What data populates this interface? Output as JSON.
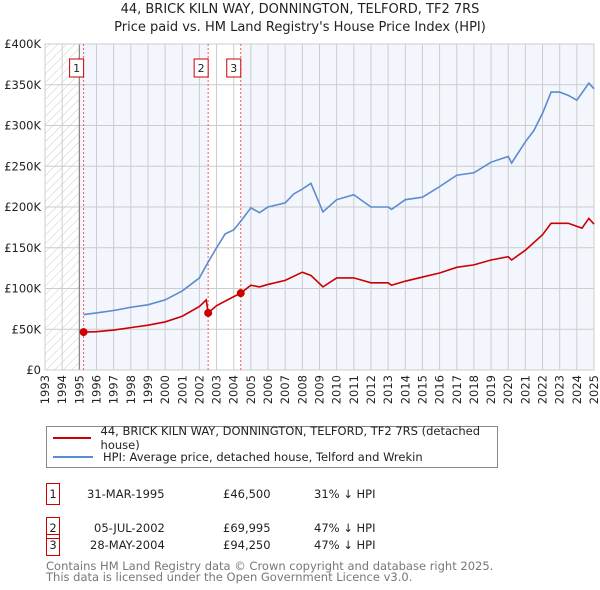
{
  "chart_data": {
    "type": "line",
    "title": "44, BRICK KILN WAY, DONNINGTON, TELFORD, TF2 7RS",
    "subtitle": "Price paid vs. HM Land Registry's House Price Index (HPI)",
    "xlim": [
      1993,
      2025
    ],
    "ylim": [
      0,
      400000
    ],
    "x_ticks": [
      "1993",
      "1994",
      "1995",
      "1996",
      "1997",
      "1998",
      "1999",
      "2000",
      "2001",
      "2002",
      "2003",
      "2004",
      "2005",
      "2006",
      "2007",
      "2008",
      "2009",
      "2010",
      "2011",
      "2012",
      "2013",
      "2014",
      "2015",
      "2016",
      "2017",
      "2018",
      "2019",
      "2020",
      "2021",
      "2022",
      "2023",
      "2024",
      "2025"
    ],
    "y_ticks": [
      {
        "v": 0,
        "label": "£0"
      },
      {
        "v": 50000,
        "label": "£50K"
      },
      {
        "v": 100000,
        "label": "£100K"
      },
      {
        "v": 150000,
        "label": "£150K"
      },
      {
        "v": 200000,
        "label": "£200K"
      },
      {
        "v": 250000,
        "label": "£250K"
      },
      {
        "v": 300000,
        "label": "£300K"
      },
      {
        "v": 350000,
        "label": "£350K"
      },
      {
        "v": 400000,
        "label": "£400K"
      }
    ],
    "grid": true,
    "legend_placement": "below",
    "series": [
      {
        "name": "44, BRICK KILN WAY, DONNINGTON, TELFORD, TF2 7RS (detached house)",
        "color": "#cc0000",
        "x": [
          1995.25,
          1996,
          1997,
          1998,
          1999,
          2000,
          2001,
          2002,
          2002.4,
          2002.51,
          2003,
          2004,
          2004.41,
          2005,
          2005.5,
          2006,
          2007,
          2008,
          2008.5,
          2009.2,
          2010,
          2011,
          2012,
          2013,
          2013.2,
          2014,
          2015,
          2016,
          2017,
          2018,
          2019,
          2020,
          2020.2,
          2021,
          2022,
          2022.5,
          2023.5,
          2024.3,
          2024.7,
          2025
        ],
        "y": [
          46500,
          47000,
          49000,
          52000,
          55000,
          59000,
          66000,
          78000,
          86000,
          69995,
          79000,
          90000,
          94250,
          104000,
          102000,
          105000,
          110000,
          120000,
          116000,
          102000,
          113000,
          113000,
          107000,
          107000,
          104000,
          109000,
          114000,
          119000,
          126000,
          129000,
          135000,
          139000,
          135000,
          147000,
          166000,
          180000,
          180000,
          174000,
          186000,
          179000
        ]
      },
      {
        "name": "HPI: Average price, detached house, Telford and Wrekin",
        "color": "#5b8bd0",
        "x": [
          1995.25,
          1996,
          1997,
          1998,
          1999,
          2000,
          2001,
          2002,
          2002.5,
          2003,
          2003.5,
          2004,
          2004.5,
          2005,
          2005.5,
          2006,
          2007,
          2007.5,
          2008,
          2008.5,
          2009.2,
          2010,
          2011,
          2012,
          2013,
          2013.2,
          2014,
          2015,
          2016,
          2017,
          2018,
          2019,
          2020,
          2020.2,
          2021,
          2021.5,
          2022,
          2022.5,
          2023,
          2023.5,
          2024,
          2024.7,
          2025
        ],
        "y": [
          68000,
          70000,
          73000,
          77000,
          80000,
          86000,
          97000,
          113000,
          132000,
          150000,
          167000,
          172000,
          185000,
          199000,
          193000,
          200000,
          205000,
          216000,
          222000,
          229000,
          194000,
          209000,
          215000,
          200000,
          200000,
          197000,
          209000,
          212000,
          225000,
          239000,
          242000,
          255000,
          262000,
          254000,
          280000,
          294000,
          315000,
          341000,
          341000,
          337000,
          331000,
          352000,
          345000
        ]
      }
    ],
    "sales": [
      {
        "id": "1",
        "x": 1995.25,
        "date": "31-MAR-1995",
        "price": 46500,
        "price_label": "£46,500",
        "hpi": "31% ↓ HPI"
      },
      {
        "id": "2",
        "x": 2002.51,
        "date": "05-JUL-2002",
        "price": 69995,
        "price_label": "£69,995",
        "hpi": "47% ↓ HPI"
      },
      {
        "id": "3",
        "x": 2004.41,
        "date": "28-MAY-2004",
        "price": 94250,
        "price_label": "£94,250",
        "hpi": "47% ↓ HPI"
      }
    ]
  },
  "footer": {
    "line1": "Contains HM Land Registry data © Crown copyright and database right 2025.",
    "line2": "This data is licensed under the Open Government Licence v3.0."
  }
}
